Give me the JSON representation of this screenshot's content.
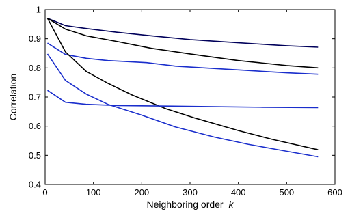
{
  "chart_data": {
    "type": "line",
    "title": "",
    "xlabel": "Neighboring order",
    "xlabel_var": "k",
    "ylabel": "Correlation",
    "xlim": [
      0,
      600
    ],
    "ylim": [
      0.4,
      1.0
    ],
    "xticks": [
      0,
      100,
      200,
      300,
      400,
      500,
      600
    ],
    "yticks": [
      0.4,
      0.5,
      0.6,
      0.7,
      0.8,
      0.9,
      1.0
    ],
    "ytick_labels": [
      "0.4",
      "0.5",
      "0.6",
      "0.7",
      "0.8",
      "0.9",
      "1"
    ],
    "grid": false,
    "legend": "none",
    "series": [
      {
        "color": "#00005a",
        "x": [
          5,
          42,
          85,
          150,
          220,
          300,
          400,
          500,
          565
        ],
        "y": [
          0.97,
          0.945,
          0.935,
          0.922,
          0.91,
          0.897,
          0.886,
          0.876,
          0.871
        ]
      },
      {
        "color": "#000000",
        "x": [
          5,
          42,
          85,
          150,
          220,
          300,
          400,
          500,
          565
        ],
        "y": [
          0.97,
          0.933,
          0.91,
          0.89,
          0.867,
          0.848,
          0.825,
          0.808,
          0.8
        ]
      },
      {
        "color": "#1a2ecc",
        "x": [
          5,
          42,
          85,
          130,
          210,
          270,
          400,
          500,
          565
        ],
        "y": [
          0.885,
          0.846,
          0.833,
          0.825,
          0.818,
          0.806,
          0.793,
          0.783,
          0.778
        ]
      },
      {
        "color": "#000000",
        "x": [
          5,
          42,
          85,
          130,
          180,
          250,
          310,
          400,
          470,
          565
        ],
        "y": [
          0.97,
          0.855,
          0.788,
          0.747,
          0.707,
          0.66,
          0.628,
          0.585,
          0.555,
          0.519
        ]
      },
      {
        "color": "#1a2ecc",
        "x": [
          5,
          42,
          85,
          130,
          200,
          270,
          350,
          420,
          500,
          565
        ],
        "y": [
          0.848,
          0.757,
          0.71,
          0.675,
          0.638,
          0.597,
          0.563,
          0.538,
          0.514,
          0.495
        ]
      },
      {
        "color": "#1a2ecc",
        "x": [
          5,
          42,
          85,
          150,
          250,
          350,
          450,
          565
        ],
        "y": [
          0.723,
          0.682,
          0.675,
          0.671,
          0.669,
          0.667,
          0.665,
          0.664
        ]
      }
    ]
  }
}
